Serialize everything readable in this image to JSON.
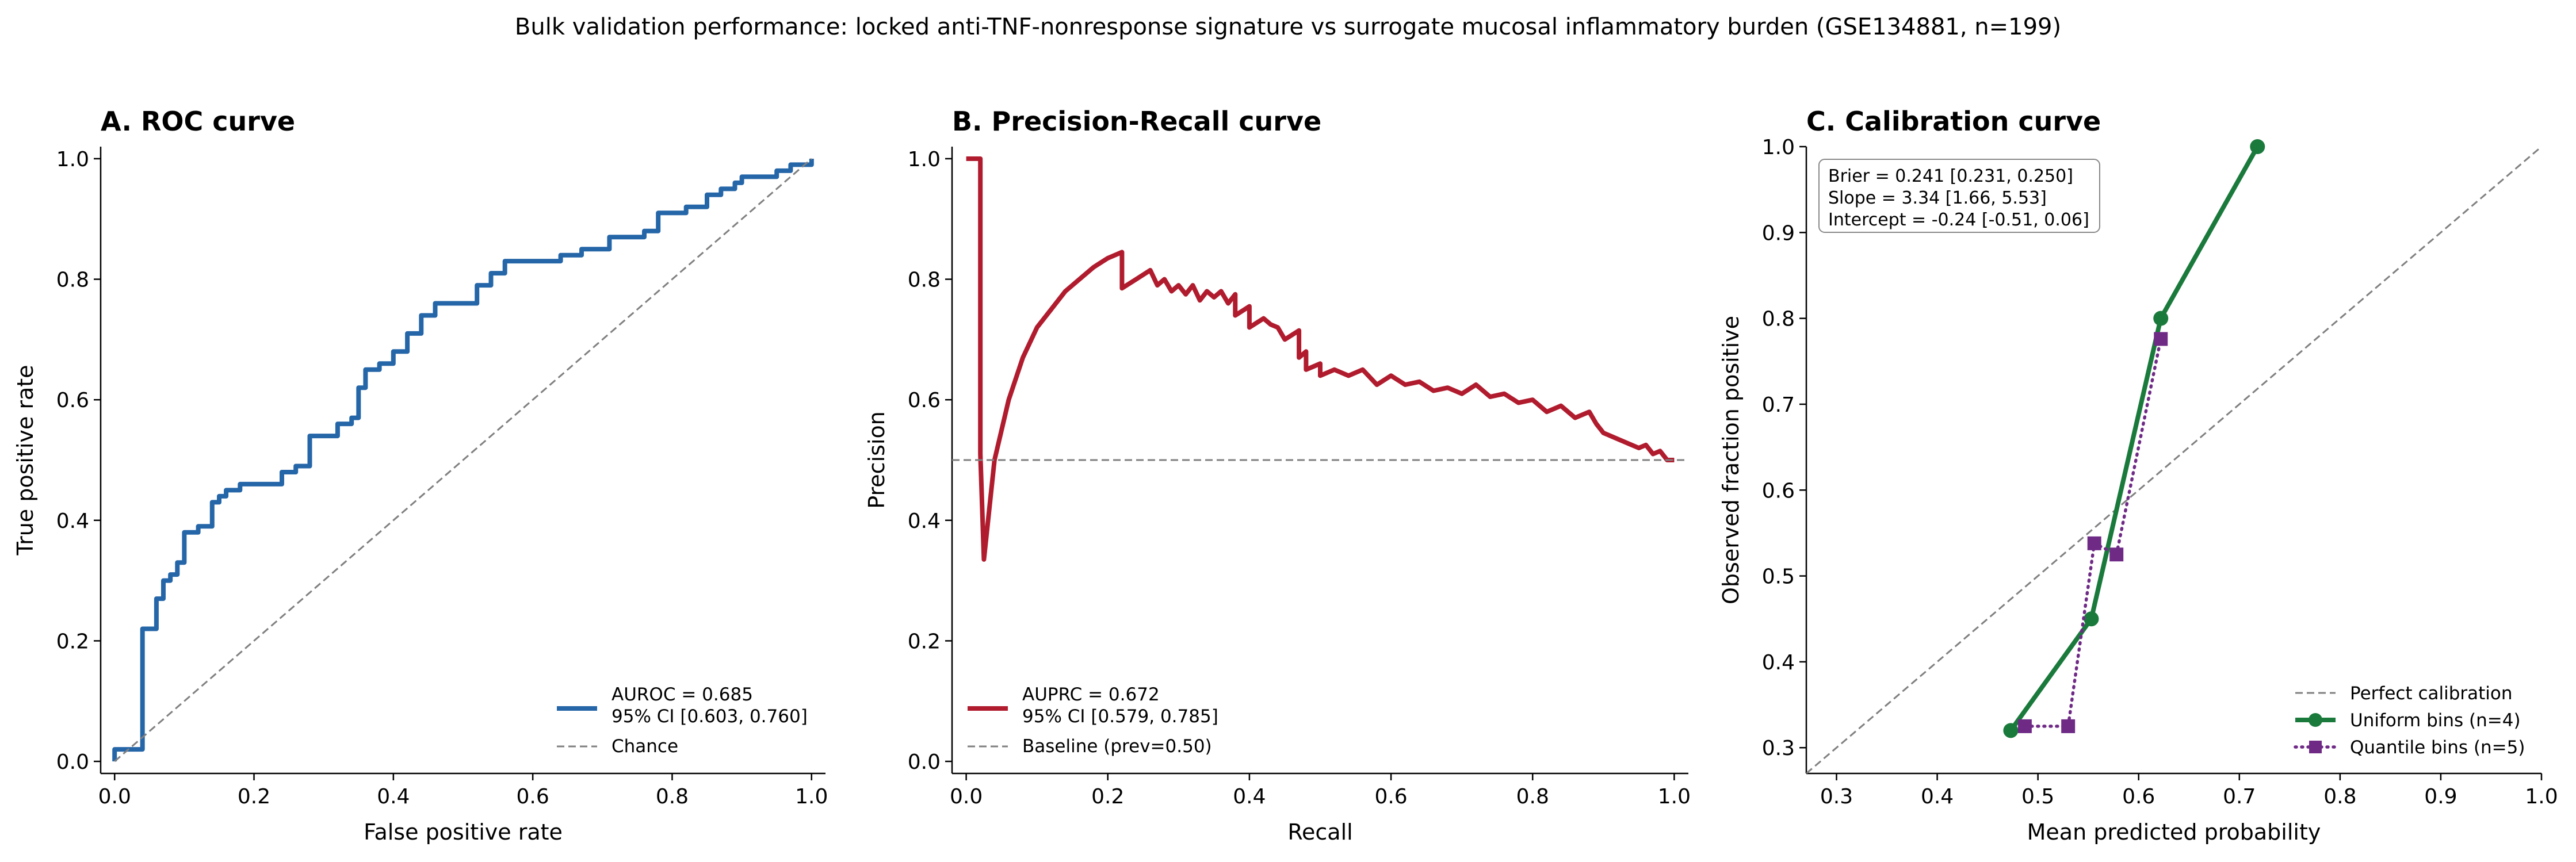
{
  "figure": {
    "suptitle": "Bulk validation performance: locked anti-TNF-nonresponse signature vs surrogate mucosal inflammatory burden (GSE134881, n=199)"
  },
  "colors": {
    "roc": "#2566a8",
    "pr": "#b01c2e",
    "uniform": "#1a7a3c",
    "quantile": "#6f2a86",
    "reference": "#808080"
  },
  "chart_data": [
    {
      "type": "line",
      "title": "A. ROC curve",
      "xlabel": "False positive rate",
      "ylabel": "True positive rate",
      "xlim": [
        -0.02,
        1.02
      ],
      "ylim": [
        -0.02,
        1.02
      ],
      "xticks": [
        "0.0",
        "0.2",
        "0.4",
        "0.6",
        "0.8",
        "1.0"
      ],
      "yticks": [
        "0.0",
        "0.2",
        "0.4",
        "0.6",
        "0.8",
        "1.0"
      ],
      "grid": false,
      "legend_position": "lower-right",
      "series": [
        {
          "name": "AUROC = 0.685\n95% CI [0.603, 0.760]",
          "style": "solid",
          "x": [
            0,
            0,
            0.04,
            0.04,
            0.06,
            0.06,
            0.07,
            0.07,
            0.08,
            0.08,
            0.09,
            0.09,
            0.1,
            0.1,
            0.12,
            0.12,
            0.14,
            0.14,
            0.15,
            0.15,
            0.16,
            0.16,
            0.18,
            0.18,
            0.24,
            0.24,
            0.26,
            0.26,
            0.28,
            0.28,
            0.32,
            0.32,
            0.34,
            0.34,
            0.35,
            0.35,
            0.36,
            0.36,
            0.38,
            0.38,
            0.4,
            0.4,
            0.42,
            0.42,
            0.44,
            0.44,
            0.46,
            0.46,
            0.48,
            0.48,
            0.52,
            0.52,
            0.54,
            0.54,
            0.56,
            0.56,
            0.64,
            0.64,
            0.67,
            0.67,
            0.71,
            0.71,
            0.76,
            0.76,
            0.78,
            0.78,
            0.82,
            0.82,
            0.85,
            0.85,
            0.87,
            0.87,
            0.89,
            0.89,
            0.9,
            0.9,
            0.95,
            0.95,
            0.97,
            0.97,
            1.0,
            1.0
          ],
          "y": [
            0,
            0.02,
            0.02,
            0.22,
            0.22,
            0.27,
            0.27,
            0.3,
            0.3,
            0.31,
            0.31,
            0.33,
            0.33,
            0.38,
            0.38,
            0.39,
            0.39,
            0.43,
            0.43,
            0.44,
            0.44,
            0.45,
            0.45,
            0.46,
            0.46,
            0.48,
            0.48,
            0.49,
            0.49,
            0.54,
            0.54,
            0.56,
            0.56,
            0.57,
            0.57,
            0.62,
            0.62,
            0.65,
            0.65,
            0.66,
            0.66,
            0.68,
            0.68,
            0.71,
            0.71,
            0.74,
            0.74,
            0.76,
            0.76,
            0.76,
            0.76,
            0.79,
            0.79,
            0.81,
            0.81,
            0.83,
            0.83,
            0.84,
            0.84,
            0.85,
            0.85,
            0.87,
            0.87,
            0.88,
            0.88,
            0.91,
            0.91,
            0.92,
            0.92,
            0.94,
            0.94,
            0.95,
            0.95,
            0.96,
            0.96,
            0.97,
            0.97,
            0.98,
            0.98,
            0.99,
            0.99,
            1.0
          ]
        },
        {
          "name": "Chance",
          "style": "dashed",
          "x": [
            0,
            1
          ],
          "y": [
            0,
            1
          ]
        }
      ]
    },
    {
      "type": "line",
      "title": "B. Precision-Recall curve",
      "xlabel": "Recall",
      "ylabel": "Precision",
      "xlim": [
        -0.02,
        1.02
      ],
      "ylim": [
        -0.02,
        1.02
      ],
      "xticks": [
        "0.0",
        "0.2",
        "0.4",
        "0.6",
        "0.8",
        "1.0"
      ],
      "yticks": [
        "0.0",
        "0.2",
        "0.4",
        "0.6",
        "0.8",
        "1.0"
      ],
      "grid": false,
      "legend_position": "lower-left",
      "series": [
        {
          "name": "AUPRC = 0.672\n95% CI [0.579, 0.785]",
          "style": "solid",
          "x": [
            0,
            0.02,
            0.02,
            0.025,
            0.04,
            0.06,
            0.08,
            0.1,
            0.12,
            0.14,
            0.16,
            0.18,
            0.2,
            0.22,
            0.22,
            0.24,
            0.26,
            0.27,
            0.28,
            0.29,
            0.3,
            0.31,
            0.32,
            0.33,
            0.34,
            0.35,
            0.36,
            0.37,
            0.38,
            0.38,
            0.4,
            0.4,
            0.42,
            0.43,
            0.44,
            0.45,
            0.47,
            0.47,
            0.48,
            0.48,
            0.5,
            0.5,
            0.52,
            0.54,
            0.56,
            0.58,
            0.6,
            0.62,
            0.64,
            0.66,
            0.68,
            0.7,
            0.72,
            0.74,
            0.76,
            0.78,
            0.8,
            0.82,
            0.84,
            0.86,
            0.88,
            0.89,
            0.9,
            0.92,
            0.94,
            0.95,
            0.96,
            0.97,
            0.98,
            0.99,
            1.0
          ],
          "y": [
            1.0,
            1.0,
            0.51,
            0.335,
            0.5,
            0.6,
            0.67,
            0.72,
            0.75,
            0.78,
            0.8,
            0.82,
            0.835,
            0.845,
            0.785,
            0.8,
            0.815,
            0.79,
            0.8,
            0.78,
            0.79,
            0.775,
            0.79,
            0.765,
            0.78,
            0.77,
            0.78,
            0.76,
            0.775,
            0.74,
            0.755,
            0.72,
            0.735,
            0.725,
            0.72,
            0.7,
            0.715,
            0.67,
            0.68,
            0.65,
            0.66,
            0.64,
            0.65,
            0.64,
            0.65,
            0.625,
            0.64,
            0.625,
            0.63,
            0.615,
            0.62,
            0.61,
            0.625,
            0.605,
            0.61,
            0.595,
            0.6,
            0.58,
            0.59,
            0.57,
            0.58,
            0.56,
            0.545,
            0.535,
            0.525,
            0.52,
            0.525,
            0.51,
            0.515,
            0.5,
            0.5
          ]
        },
        {
          "name": "Baseline (prev=0.50)",
          "style": "dashed",
          "x": [
            -0.02,
            1.02
          ],
          "y": [
            0.5,
            0.5
          ]
        }
      ]
    },
    {
      "type": "line",
      "title": "C. Calibration curve",
      "xlabel": "Mean predicted probability",
      "ylabel": "Observed fraction positive",
      "xlim": [
        0.27,
        1.0
      ],
      "ylim": [
        0.27,
        1.0
      ],
      "xticks": [
        "0.3",
        "0.4",
        "0.5",
        "0.6",
        "0.7",
        "0.8",
        "0.9",
        "1.0"
      ],
      "yticks": [
        "0.3",
        "0.4",
        "0.5",
        "0.6",
        "0.7",
        "0.8",
        "0.9",
        "1.0"
      ],
      "grid": false,
      "legend_position": "lower-right",
      "annotation": [
        "Brier = 0.241 [0.231, 0.250]",
        "Slope = 3.34 [1.66, 5.53]",
        "Intercept = -0.24 [-0.51, 0.06]"
      ],
      "series": [
        {
          "name": "Perfect calibration",
          "style": "dashed",
          "x": [
            0.27,
            1.0
          ],
          "y": [
            0.27,
            1.0
          ]
        },
        {
          "name": "Uniform bins (n=4)",
          "style": "solid",
          "marker": "circle",
          "x": [
            0.473,
            0.553,
            0.622,
            0.718
          ],
          "y": [
            0.32,
            0.45,
            0.8,
            1.0
          ]
        },
        {
          "name": "Quantile bins (n=5)",
          "style": "dotted",
          "marker": "square",
          "x": [
            0.487,
            0.53,
            0.556,
            0.578,
            0.622
          ],
          "y": [
            0.325,
            0.325,
            0.538,
            0.525,
            0.776
          ]
        }
      ]
    }
  ]
}
